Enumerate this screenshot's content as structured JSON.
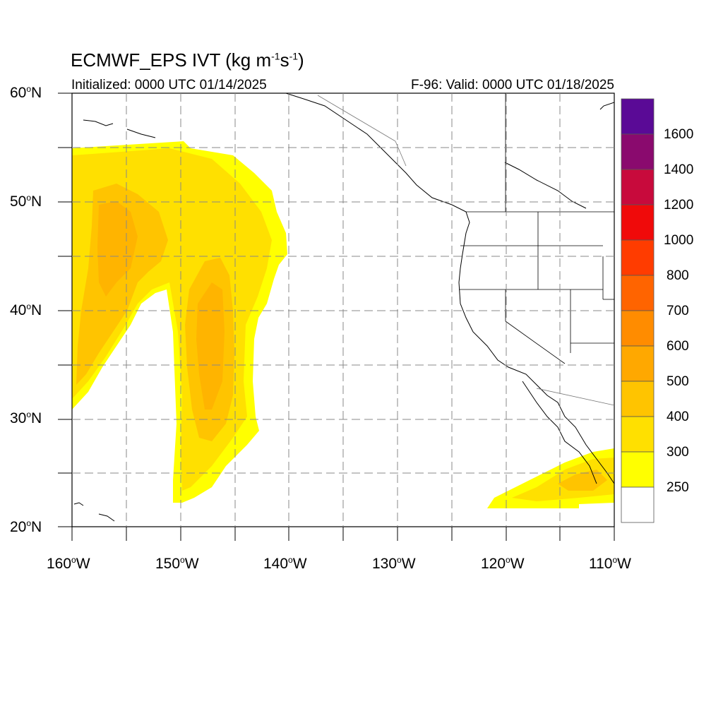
{
  "header": {
    "title_main": "ECMWF_EPS IVT (kg m",
    "title_sup1": "-1",
    "title_mid": "s",
    "title_sup2": "-1",
    "title_end": ")",
    "initialized": "Initialized: 0000 UTC 01/14/2025",
    "valid": "F-96: Valid: 0000 UTC 01/18/2025"
  },
  "map": {
    "lat_labels": [
      {
        "deg": "60",
        "hem": "N"
      },
      {
        "deg": "50",
        "hem": "N"
      },
      {
        "deg": "40",
        "hem": "N"
      },
      {
        "deg": "30",
        "hem": "N"
      },
      {
        "deg": "20",
        "hem": "N"
      }
    ],
    "lon_labels": [
      {
        "deg": "160",
        "hem": "W"
      },
      {
        "deg": "150",
        "hem": "W"
      },
      {
        "deg": "140",
        "hem": "W"
      },
      {
        "deg": "130",
        "hem": "W"
      },
      {
        "deg": "120",
        "hem": "W"
      },
      {
        "deg": "110",
        "hem": "W"
      }
    ],
    "extent": {
      "lon_min": -160,
      "lon_max": -110,
      "lat_min": 20,
      "lat_max": 60
    },
    "gridlines": "dashed, every 5 degrees",
    "colors": {
      "land_line": "#000000",
      "grid": "#888888"
    }
  },
  "colorbar": {
    "labels": [
      "1600",
      "1400",
      "1200",
      "1000",
      "800",
      "700",
      "600",
      "500",
      "400",
      "300",
      "250"
    ],
    "colors_top_to_bottom": [
      "#5a0a96",
      "#8a0a6e",
      "#c80a3c",
      "#f00a0a",
      "#ff3c00",
      "#ff6400",
      "#ff8c00",
      "#ffa800",
      "#ffc400",
      "#ffe000",
      "#ffff00",
      "#ffffff"
    ]
  },
  "fields": {
    "ivt_levels": [
      250,
      300,
      400,
      500,
      600,
      700,
      800,
      1000,
      1200,
      1400,
      1600
    ],
    "plume_west_colors": {
      "250": "#ffff00",
      "300": "#ffe000",
      "400": "#ffc400",
      "500": "#ffa800"
    }
  }
}
